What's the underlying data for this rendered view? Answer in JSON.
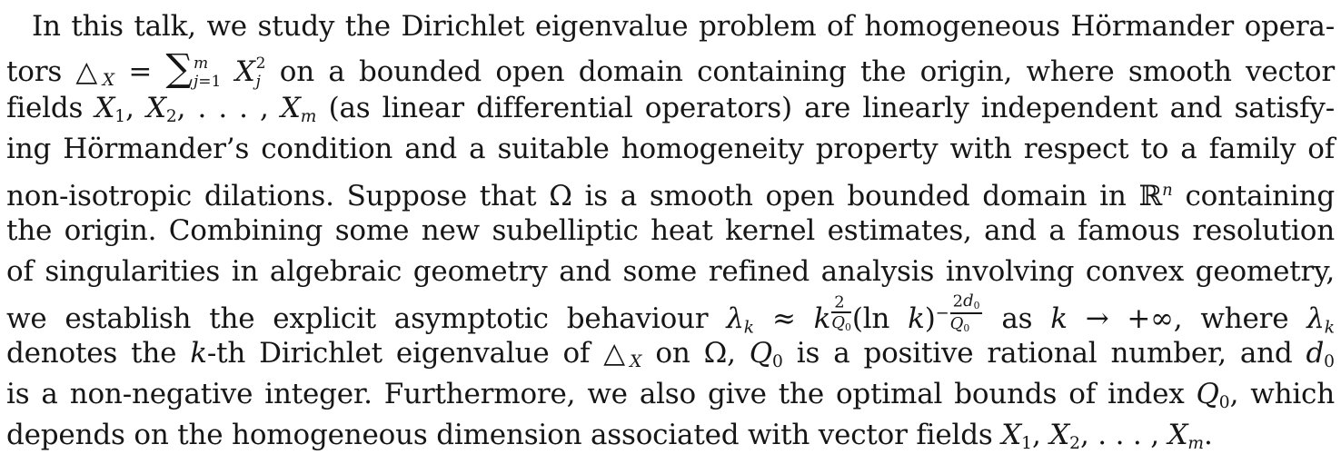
{
  "page": {
    "background_color": "#ffffff",
    "text_color": "#161616"
  },
  "abstract": {
    "lines": [
      {
        "indent": true,
        "justify": true,
        "segments": [
          {
            "k": "t",
            "v": "In this talk, we study the Dirichlet eigenvalue problem of homogeneous Hörmander opera-"
          }
        ]
      },
      {
        "indent": false,
        "justify": true,
        "segments": [
          {
            "k": "t",
            "v": "tors "
          },
          {
            "k": "t",
            "v": "△"
          },
          {
            "k": "sub",
            "v": [
              {
                "k": "i",
                "v": "X"
              }
            ]
          },
          {
            "k": "t",
            "v": " = "
          },
          {
            "k": "big",
            "v": "∑"
          },
          {
            "k": "stack",
            "v": {
              "top": [
                {
                  "k": "i",
                  "v": "m"
                }
              ],
              "bottom": [
                {
                  "k": "i",
                  "v": "j"
                },
                {
                  "k": "t",
                  "v": "=1"
                }
              ]
            }
          },
          {
            "k": "t",
            "v": " "
          },
          {
            "k": "i",
            "v": "X"
          },
          {
            "k": "stack",
            "v": {
              "top": [
                {
                  "k": "t",
                  "v": "2"
                }
              ],
              "bottom": [
                {
                  "k": "i",
                  "v": "j"
                }
              ]
            }
          },
          {
            "k": "t",
            "v": " on a bounded open domain containing the origin, where smooth vector"
          }
        ]
      },
      {
        "indent": false,
        "justify": true,
        "segments": [
          {
            "k": "t",
            "v": "fields "
          },
          {
            "k": "i",
            "v": "X"
          },
          {
            "k": "sub",
            "v": [
              {
                "k": "t",
                "v": "1"
              }
            ]
          },
          {
            "k": "t",
            "v": ", "
          },
          {
            "k": "i",
            "v": "X"
          },
          {
            "k": "sub",
            "v": [
              {
                "k": "t",
                "v": "2"
              }
            ]
          },
          {
            "k": "t",
            "v": ", . . . , "
          },
          {
            "k": "i",
            "v": "X"
          },
          {
            "k": "sub",
            "v": [
              {
                "k": "i",
                "v": "m"
              }
            ]
          },
          {
            "k": "t",
            "v": " (as linear differential operators) are linearly independent and satisfy-"
          }
        ]
      },
      {
        "indent": false,
        "justify": true,
        "segments": [
          {
            "k": "t",
            "v": "ing Hörmander’s condition and a suitable homogeneity property with respect to a family of"
          }
        ]
      },
      {
        "indent": false,
        "justify": true,
        "segments": [
          {
            "k": "t",
            "v": "non-isotropic dilations. Suppose that Ω is a smooth open bounded domain in "
          },
          {
            "k": "t",
            "v": "ℝ"
          },
          {
            "k": "sup",
            "v": [
              {
                "k": "i",
                "v": "n"
              }
            ]
          },
          {
            "k": "t",
            "v": " containing"
          }
        ]
      },
      {
        "indent": false,
        "justify": true,
        "segments": [
          {
            "k": "t",
            "v": "the origin. Combining some new subelliptic heat kernel estimates, and a famous resolution"
          }
        ]
      },
      {
        "indent": false,
        "justify": true,
        "segments": [
          {
            "k": "t",
            "v": "of singularities in algebraic geometry and some refined analysis involving convex geometry,"
          }
        ]
      },
      {
        "indent": false,
        "justify": true,
        "segments": [
          {
            "k": "t",
            "v": "we establish the explicit asymptotic behaviour "
          },
          {
            "k": "i",
            "v": "λ"
          },
          {
            "k": "sub",
            "v": [
              {
                "k": "i",
                "v": "k"
              }
            ]
          },
          {
            "k": "t",
            "v": " ≈ "
          },
          {
            "k": "i",
            "v": "k"
          },
          {
            "k": "sup",
            "v": [
              {
                "k": "frac",
                "v": {
                  "num": [
                    {
                      "k": "t",
                      "v": "2"
                    }
                  ],
                  "den": [
                    {
                      "k": "i",
                      "v": "Q"
                    },
                    {
                      "k": "sub",
                      "v": [
                        {
                          "k": "t",
                          "v": "0"
                        }
                      ]
                    }
                  ]
                }
              }
            ]
          },
          {
            "k": "t",
            "v": "(ln "
          },
          {
            "k": "i",
            "v": "k"
          },
          {
            "k": "t",
            "v": ")"
          },
          {
            "k": "sup",
            "v": [
              {
                "k": "t",
                "v": "−"
              },
              {
                "k": "frac",
                "v": {
                  "num": [
                    {
                      "k": "t",
                      "v": "2"
                    },
                    {
                      "k": "i",
                      "v": "d"
                    },
                    {
                      "k": "sub",
                      "v": [
                        {
                          "k": "t",
                          "v": "0"
                        }
                      ]
                    }
                  ],
                  "den": [
                    {
                      "k": "i",
                      "v": "Q"
                    },
                    {
                      "k": "sub",
                      "v": [
                        {
                          "k": "t",
                          "v": "0"
                        }
                      ]
                    }
                  ]
                }
              }
            ]
          },
          {
            "k": "t",
            "v": " as "
          },
          {
            "k": "i",
            "v": "k"
          },
          {
            "k": "t",
            "v": " → +∞, where "
          },
          {
            "k": "i",
            "v": "λ"
          },
          {
            "k": "sub",
            "v": [
              {
                "k": "i",
                "v": "k"
              }
            ]
          }
        ]
      },
      {
        "indent": false,
        "justify": true,
        "segments": [
          {
            "k": "t",
            "v": "denotes the "
          },
          {
            "k": "i",
            "v": "k"
          },
          {
            "k": "t",
            "v": "-th Dirichlet eigenvalue of "
          },
          {
            "k": "t",
            "v": "△"
          },
          {
            "k": "sub",
            "v": [
              {
                "k": "i",
                "v": "X"
              }
            ]
          },
          {
            "k": "t",
            "v": " on Ω, "
          },
          {
            "k": "i",
            "v": "Q"
          },
          {
            "k": "sub",
            "v": [
              {
                "k": "t",
                "v": "0"
              }
            ]
          },
          {
            "k": "t",
            "v": " is a positive rational number, and "
          },
          {
            "k": "i",
            "v": "d"
          },
          {
            "k": "sub",
            "v": [
              {
                "k": "t",
                "v": "0"
              }
            ]
          }
        ]
      },
      {
        "indent": false,
        "justify": true,
        "segments": [
          {
            "k": "t",
            "v": "is a non-negative integer. Furthermore, we also give the optimal bounds of index "
          },
          {
            "k": "i",
            "v": "Q"
          },
          {
            "k": "sub",
            "v": [
              {
                "k": "t",
                "v": "0"
              }
            ]
          },
          {
            "k": "t",
            "v": ", which"
          }
        ]
      },
      {
        "indent": false,
        "justify": false,
        "segments": [
          {
            "k": "t",
            "v": "depends on the homogeneous dimension associated with vector fields "
          },
          {
            "k": "i",
            "v": "X"
          },
          {
            "k": "sub",
            "v": [
              {
                "k": "t",
                "v": "1"
              }
            ]
          },
          {
            "k": "t",
            "v": ", "
          },
          {
            "k": "i",
            "v": "X"
          },
          {
            "k": "sub",
            "v": [
              {
                "k": "t",
                "v": "2"
              }
            ]
          },
          {
            "k": "t",
            "v": ", . . . , "
          },
          {
            "k": "i",
            "v": "X"
          },
          {
            "k": "sub",
            "v": [
              {
                "k": "i",
                "v": "m"
              }
            ]
          },
          {
            "k": "t",
            "v": "."
          }
        ]
      }
    ]
  }
}
